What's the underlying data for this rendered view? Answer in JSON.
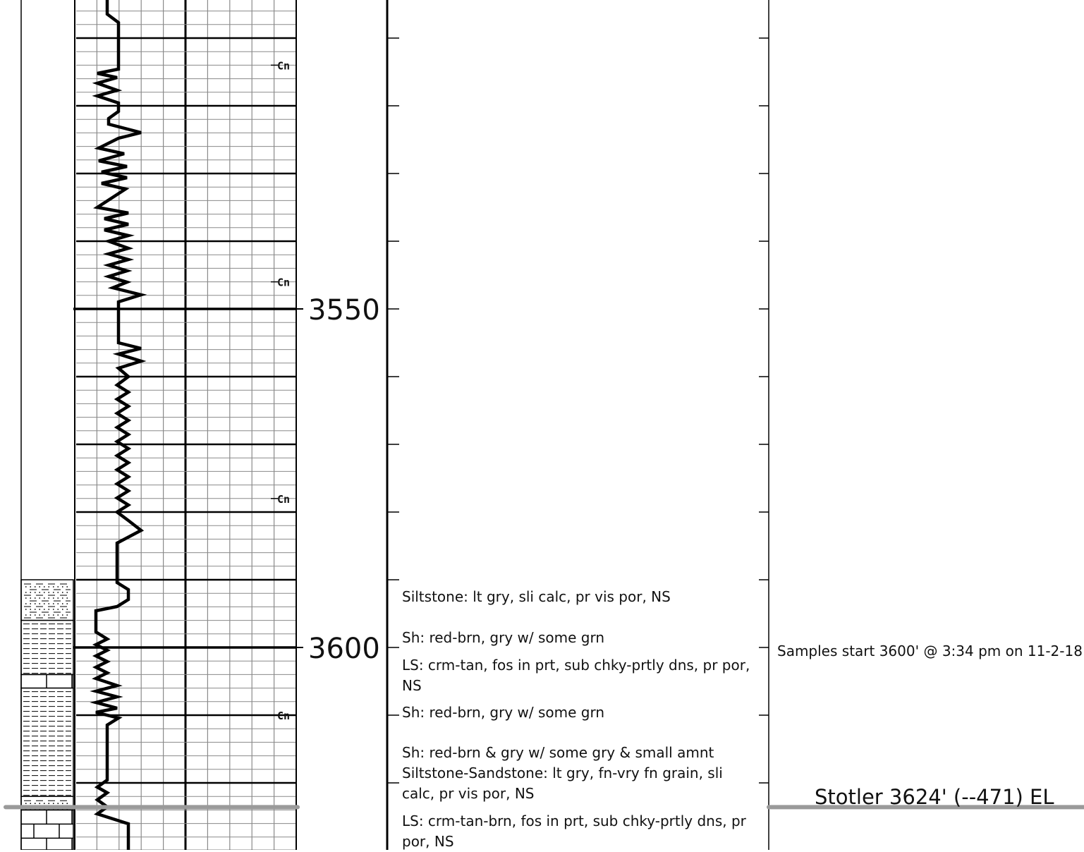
{
  "depth_track": {
    "labels": [
      {
        "depth": 3550,
        "text": "3550"
      },
      {
        "depth": 3600,
        "text": "3600"
      }
    ],
    "curve_marker": "Cn"
  },
  "descriptions": [
    {
      "depth": 3591,
      "lines": [
        "Siltstone: lt gry, sli calc, pr vis por, NS"
      ]
    },
    {
      "depth": 3597,
      "lines": [
        "Sh: red-brn, gry w/ some grn"
      ]
    },
    {
      "depth": 3601,
      "lines": [
        "LS: crm-tan, fos in prt, sub chky-prtly dns, pr por,",
        "NS"
      ]
    },
    {
      "depth": 3608,
      "lines": [
        "Sh: red-brn, gry w/ some grn"
      ]
    },
    {
      "depth": 3614,
      "lines": [
        "Sh: red-brn & gry w/ some gry & small amnt",
        "Siltstone-Sandstone: lt gry, fn-vry fn grain, sli",
        "calc, pr vis por, NS"
      ]
    },
    {
      "depth": 3624,
      "lines": [
        "LS: crm-tan-brn, fos in prt, sub chky-prtly dns, pr",
        "por, NS"
      ]
    }
  ],
  "remarks": [
    {
      "depth": 3600,
      "text": "Samples start 3600' @ 3:34 pm on 11-2-18"
    }
  ],
  "formation_tops": [
    {
      "depth": 3624,
      "text": "Stotler  3624' (--471) EL"
    }
  ],
  "lithology": [
    {
      "from": 3590,
      "to": 3596,
      "type": "siltstone"
    },
    {
      "from": 3596,
      "to": 3604,
      "type": "shale"
    },
    {
      "from": 3604,
      "to": 3606,
      "type": "limestone"
    },
    {
      "from": 3606,
      "to": 3622,
      "type": "shale"
    },
    {
      "from": 3622,
      "to": 3624,
      "type": "siltstone"
    },
    {
      "from": 3624,
      "to": 3630,
      "type": "limestone"
    }
  ],
  "colors": {
    "grid_thin": "#8a8a8a",
    "grid_thick": "#000000",
    "formation_line": "#9a9a9a",
    "curve": "#000000"
  }
}
